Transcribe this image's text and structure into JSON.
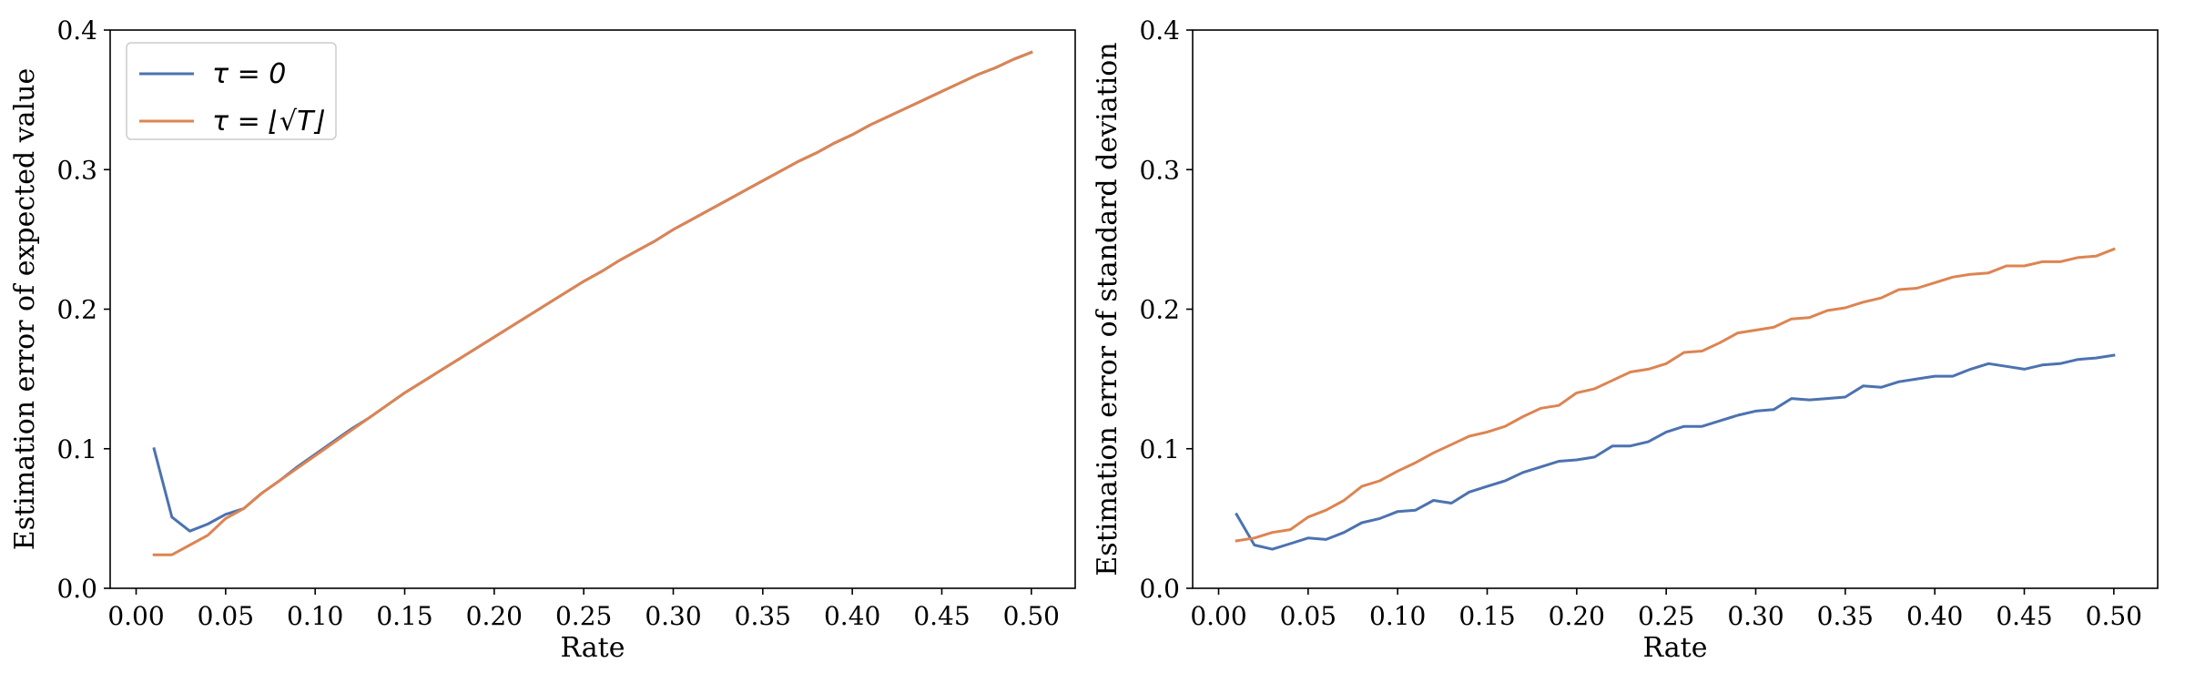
{
  "colors": {
    "tau0": "#4c72b0",
    "tauSqrt": "#dd8452",
    "axis": "#000000"
  },
  "chart_data": [
    {
      "type": "line",
      "xlabel": "Rate",
      "ylabel": "Estimation error of expected value",
      "xlim": [
        -0.0145,
        0.5245
      ],
      "ylim": [
        0,
        0.4
      ],
      "xticks": [
        "0.00",
        "0.05",
        "0.10",
        "0.15",
        "0.20",
        "0.25",
        "0.30",
        "0.35",
        "0.40",
        "0.45",
        "0.50"
      ],
      "yticks": [
        "0.0",
        "0.1",
        "0.2",
        "0.3",
        "0.4"
      ],
      "legend": {
        "placement": "top-left",
        "entries": [
          "τ = 0",
          "τ = ⌊√T⌋"
        ]
      },
      "x": [
        0.01,
        0.02,
        0.03,
        0.04,
        0.05,
        0.06,
        0.07,
        0.08,
        0.09,
        0.1,
        0.11,
        0.12,
        0.13,
        0.14,
        0.15,
        0.16,
        0.17,
        0.18,
        0.19,
        0.2,
        0.21,
        0.22,
        0.23,
        0.24,
        0.25,
        0.26,
        0.27,
        0.28,
        0.29,
        0.3,
        0.31,
        0.32,
        0.33,
        0.34,
        0.35,
        0.36,
        0.37,
        0.38,
        0.39,
        0.4,
        0.41,
        0.42,
        0.43,
        0.44,
        0.45,
        0.46,
        0.47,
        0.48,
        0.49,
        0.5
      ],
      "series": [
        {
          "name": "τ = 0",
          "color": "tau0",
          "values": [
            0.1,
            0.051,
            0.041,
            0.046,
            0.053,
            0.057,
            0.068,
            0.077,
            0.087,
            0.096,
            0.105,
            0.114,
            0.122,
            0.131,
            0.14,
            0.148,
            0.156,
            0.164,
            0.172,
            0.18,
            0.188,
            0.196,
            0.204,
            0.212,
            0.22,
            0.227,
            0.235,
            0.242,
            0.249,
            0.257,
            0.264,
            0.271,
            0.278,
            0.285,
            0.292,
            0.299,
            0.306,
            0.312,
            0.319,
            0.325,
            0.332,
            0.338,
            0.344,
            0.35,
            0.356,
            0.362,
            0.368,
            0.373,
            0.379,
            0.384
          ]
        },
        {
          "name": "τ = ⌊√T⌋",
          "color": "tauSqrt",
          "values": [
            0.024,
            0.024,
            0.031,
            0.038,
            0.05,
            0.057,
            0.068,
            0.077,
            0.086,
            0.095,
            0.104,
            0.113,
            0.122,
            0.131,
            0.14,
            0.148,
            0.156,
            0.164,
            0.172,
            0.18,
            0.188,
            0.196,
            0.204,
            0.212,
            0.22,
            0.227,
            0.235,
            0.242,
            0.249,
            0.257,
            0.264,
            0.271,
            0.278,
            0.285,
            0.292,
            0.299,
            0.306,
            0.312,
            0.319,
            0.325,
            0.332,
            0.338,
            0.344,
            0.35,
            0.356,
            0.362,
            0.368,
            0.373,
            0.379,
            0.384
          ]
        }
      ]
    },
    {
      "type": "line",
      "xlabel": "Rate",
      "ylabel": "Estimation error of standard deviation",
      "xlim": [
        -0.0145,
        0.5245
      ],
      "ylim": [
        0,
        0.4
      ],
      "xticks": [
        "0.00",
        "0.05",
        "0.10",
        "0.15",
        "0.20",
        "0.25",
        "0.30",
        "0.35",
        "0.40",
        "0.45",
        "0.50"
      ],
      "yticks": [
        "0.0",
        "0.1",
        "0.2",
        "0.3",
        "0.4"
      ],
      "x": [
        0.01,
        0.02,
        0.03,
        0.04,
        0.05,
        0.06,
        0.07,
        0.08,
        0.09,
        0.1,
        0.11,
        0.12,
        0.13,
        0.14,
        0.15,
        0.16,
        0.17,
        0.18,
        0.19,
        0.2,
        0.21,
        0.22,
        0.23,
        0.24,
        0.25,
        0.26,
        0.27,
        0.28,
        0.29,
        0.3,
        0.31,
        0.32,
        0.33,
        0.34,
        0.35,
        0.36,
        0.37,
        0.38,
        0.39,
        0.4,
        0.41,
        0.42,
        0.43,
        0.44,
        0.45,
        0.46,
        0.47,
        0.48,
        0.49,
        0.5
      ],
      "series": [
        {
          "name": "τ = 0",
          "color": "tau0",
          "values": [
            0.053,
            0.031,
            0.028,
            0.032,
            0.036,
            0.035,
            0.04,
            0.047,
            0.05,
            0.055,
            0.056,
            0.063,
            0.061,
            0.069,
            0.073,
            0.077,
            0.083,
            0.087,
            0.091,
            0.092,
            0.094,
            0.102,
            0.102,
            0.105,
            0.112,
            0.116,
            0.116,
            0.12,
            0.124,
            0.127,
            0.128,
            0.136,
            0.135,
            0.136,
            0.137,
            0.145,
            0.144,
            0.148,
            0.15,
            0.152,
            0.152,
            0.157,
            0.161,
            0.159,
            0.157,
            0.16,
            0.161,
            0.164,
            0.165,
            0.167
          ]
        },
        {
          "name": "τ = ⌊√T⌋",
          "color": "tauSqrt",
          "values": [
            0.034,
            0.036,
            0.04,
            0.042,
            0.051,
            0.056,
            0.063,
            0.073,
            0.077,
            0.084,
            0.09,
            0.097,
            0.103,
            0.109,
            0.112,
            0.116,
            0.123,
            0.129,
            0.131,
            0.14,
            0.143,
            0.149,
            0.155,
            0.157,
            0.161,
            0.169,
            0.17,
            0.176,
            0.183,
            0.185,
            0.187,
            0.193,
            0.194,
            0.199,
            0.201,
            0.205,
            0.208,
            0.214,
            0.215,
            0.219,
            0.223,
            0.225,
            0.226,
            0.231,
            0.231,
            0.234,
            0.234,
            0.237,
            0.238,
            0.243
          ]
        }
      ]
    }
  ]
}
